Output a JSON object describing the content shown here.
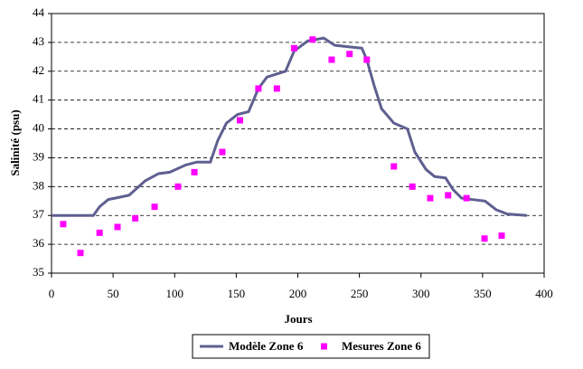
{
  "chart_data": {
    "type": "line",
    "xlabel": "Jours",
    "ylabel": "Salinité (psu)",
    "xlim": [
      0,
      400
    ],
    "xticks": [
      0,
      50,
      100,
      150,
      200,
      250,
      300,
      350,
      400
    ],
    "ylim": [
      35,
      44
    ],
    "yticks": [
      35,
      36,
      37,
      38,
      39,
      40,
      41,
      42,
      43,
      44
    ],
    "grid": true,
    "legend": "bottom",
    "series": [
      {
        "name": "Modèle Zone 6",
        "color": "#5f5f91",
        "mode": "line",
        "x": [
          0,
          34,
          39,
          46,
          63,
          76,
          87,
          96,
          109,
          118,
          129,
          135,
          142,
          151,
          160,
          168,
          175,
          190,
          197,
          208,
          221,
          230,
          252,
          256,
          262,
          268,
          278,
          289,
          295,
          304,
          311,
          320,
          326,
          333,
          342,
          352,
          361,
          370,
          386
        ],
        "values": [
          37,
          37,
          37.3,
          37.55,
          37.7,
          38.2,
          38.45,
          38.5,
          38.75,
          38.85,
          38.85,
          39.6,
          40.2,
          40.5,
          40.6,
          41.4,
          41.8,
          42.0,
          42.7,
          43.05,
          43.15,
          42.9,
          42.8,
          42.4,
          41.5,
          40.7,
          40.2,
          40.0,
          39.2,
          38.6,
          38.35,
          38.3,
          37.9,
          37.6,
          37.55,
          37.5,
          37.2,
          37.05,
          37.0
        ]
      },
      {
        "name": "Mesures Zone 6",
        "color": "#ff00ff",
        "mode": "markers",
        "x": [
          9.5,
          23.5,
          39,
          53.6,
          68,
          83.7,
          102.7,
          116,
          138.7,
          153,
          168,
          183,
          197,
          212,
          227.5,
          242,
          256,
          278,
          293,
          307.5,
          322,
          337,
          351.6,
          365.5
        ],
        "values": [
          36.7,
          35.7,
          36.4,
          36.6,
          36.9,
          37.3,
          38.0,
          38.5,
          39.2,
          40.3,
          41.4,
          41.4,
          42.8,
          43.1,
          42.4,
          42.6,
          42.4,
          38.7,
          38.0,
          37.6,
          37.7,
          37.6,
          36.2,
          36.3
        ]
      }
    ]
  }
}
